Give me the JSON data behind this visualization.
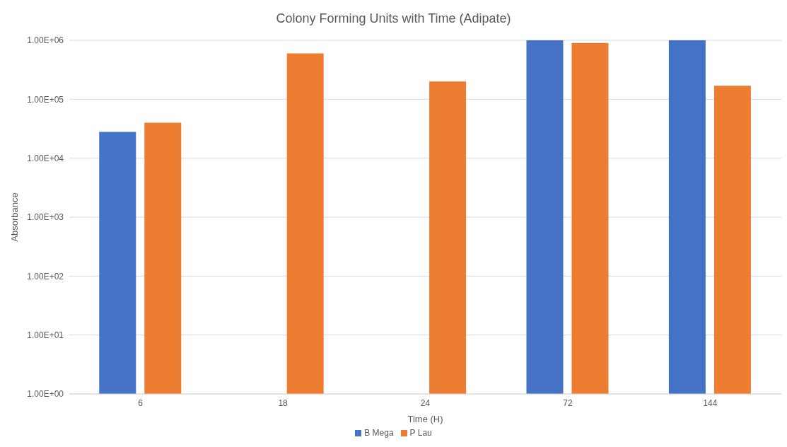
{
  "chart_data": {
    "type": "bar",
    "title": "Colony Forming Units with Time (Adipate)",
    "xlabel": "Time (H)",
    "ylabel": "Absorbance",
    "categories": [
      "6",
      "18",
      "24",
      "72",
      "144"
    ],
    "series": [
      {
        "name": "B Mega",
        "color": "#4472c4",
        "values": [
          28000,
          null,
          null,
          1000000,
          1000000
        ]
      },
      {
        "name": "P Lau",
        "color": "#ed7d31",
        "values": [
          40000,
          600000,
          200000,
          900000,
          170000
        ]
      }
    ],
    "log": "y",
    "ylim": [
      1,
      1000000
    ],
    "yticks": [
      {
        "value": 1,
        "label": "1.00E+00"
      },
      {
        "value": 10,
        "label": "1.00E+01"
      },
      {
        "value": 100,
        "label": "1.00E+02"
      },
      {
        "value": 1000,
        "label": "1.00E+03"
      },
      {
        "value": 10000,
        "label": "1.00E+04"
      },
      {
        "value": 100000,
        "label": "1.00E+05"
      },
      {
        "value": 1000000,
        "label": "1.00E+06"
      }
    ],
    "grid": "y",
    "legend": "bottom"
  }
}
